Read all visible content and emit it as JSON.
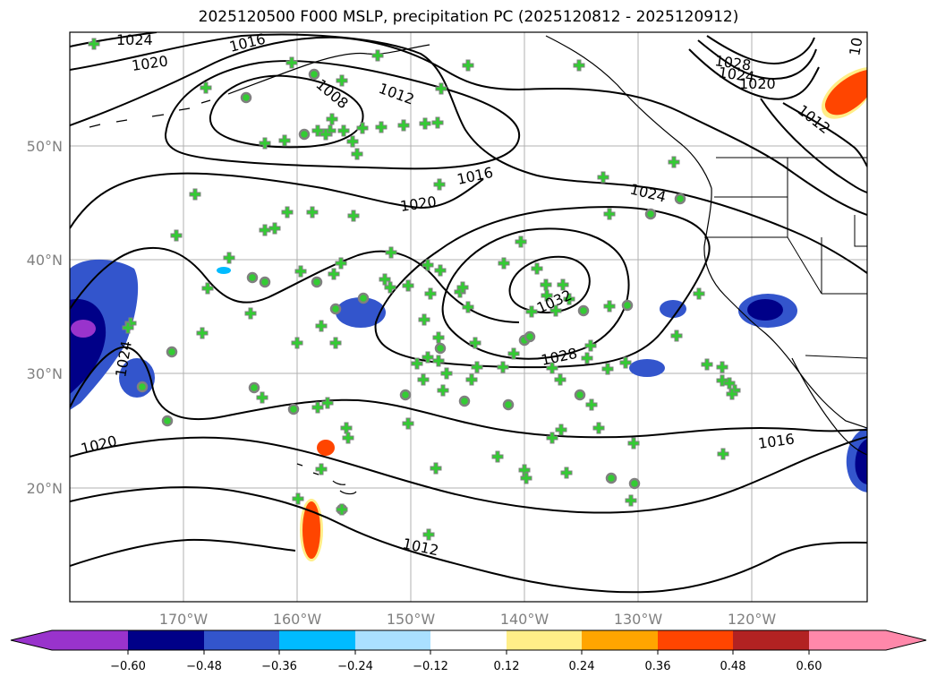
{
  "title": "2025120500 F000 MSLP, precipitation PC (2025120812 - 2025120912)",
  "map": {
    "lon_labels": [
      "170°W",
      "160°W",
      "150°W",
      "140°W",
      "130°W",
      "120°W"
    ],
    "lat_labels": [
      "50°N",
      "40°N",
      "30°N",
      "20°N"
    ],
    "contour_labels": [
      "1024",
      "1020",
      "1016",
      "1008",
      "1012",
      "1028",
      "1024",
      "1020",
      "1012",
      "1016",
      "1020",
      "1024",
      "1032",
      "1028",
      "1024",
      "1020",
      "1016",
      "1012",
      "10"
    ],
    "marker_color": "#33cc33",
    "marker_edge_color": "#808080"
  },
  "colorbar": {
    "tick_labels": [
      "−0.60",
      "−0.48",
      "−0.36",
      "−0.24",
      "−0.12",
      "0.12",
      "0.24",
      "0.36",
      "0.48",
      "0.60"
    ],
    "colors": [
      "#9933cc",
      "#000088",
      "#3355cc",
      "#00bbff",
      "#aae0ff",
      "#ffffff",
      "#ffee88",
      "#ffa500",
      "#ff4500",
      "#b22222",
      "#ff88aa"
    ]
  }
}
